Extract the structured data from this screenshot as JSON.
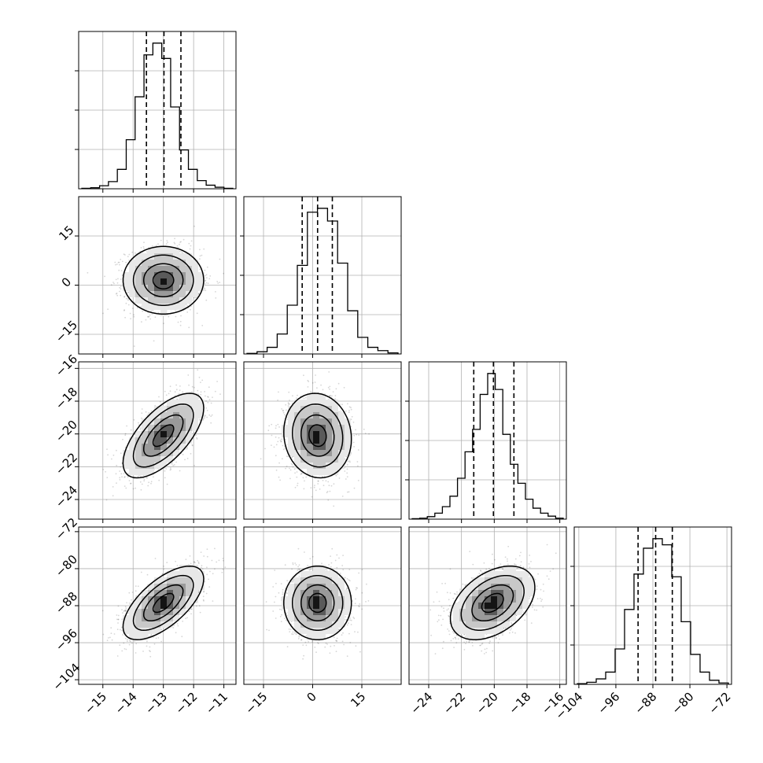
{
  "chart_data": {
    "type": "corner",
    "title": "",
    "grid": true,
    "params": [
      {
        "range": [
          -15.8,
          -10.6
        ],
        "ticks": [
          -15,
          -14,
          -13,
          -12,
          -11
        ],
        "tick_labels": [
          "−15",
          "−14",
          "−13",
          "−12",
          "−11"
        ],
        "quantiles": [
          -13.56,
          -12.98,
          -12.42
        ],
        "mean": -13.0,
        "sd": 0.62,
        "hist_counts": [
          1,
          2,
          6,
          14,
          38,
          96,
          180,
          262,
          285,
          255,
          160,
          76,
          38,
          16,
          7,
          3,
          1
        ]
      },
      {
        "range": [
          -21,
          27
        ],
        "ticks": [
          -15,
          0,
          15
        ],
        "tick_labels": [
          "−15",
          "0",
          "15"
        ],
        "quantiles": [
          -3.2,
          1.5,
          6.0
        ],
        "mean": 1.5,
        "sd": 4.8,
        "hist_counts": [
          1,
          4,
          12,
          36,
          88,
          160,
          256,
          263,
          240,
          164,
          78,
          30,
          12,
          6,
          2
        ]
      },
      {
        "range": [
          -25.2,
          -15.6
        ],
        "ticks": [
          -24,
          -22,
          -20,
          -18,
          -16
        ],
        "tick_labels": [
          "−24",
          "−22",
          "−20",
          "−18",
          "−16"
        ],
        "quantiles": [
          -21.25,
          -20.05,
          -18.8
        ],
        "mean": -20.1,
        "sd": 1.2,
        "hist_counts": [
          1,
          2,
          5,
          12,
          25,
          46,
          82,
          135,
          180,
          250,
          292,
          260,
          170,
          110,
          72,
          40,
          22,
          12,
          6,
          2
        ]
      },
      {
        "range": [
          -105,
          -71
        ],
        "ticks": [
          -104,
          -96,
          -88,
          -80,
          -72
        ],
        "tick_labels": [
          "−104",
          "−96",
          "−88",
          "−80",
          "−72"
        ],
        "quantiles": [
          -91.2,
          -87.4,
          -83.8
        ],
        "mean": -87.4,
        "sd": 3.7,
        "hist_counts": [
          1,
          3,
          8,
          18,
          52,
          110,
          162,
          200,
          214,
          205,
          158,
          92,
          44,
          18,
          6,
          2
        ]
      }
    ],
    "correlations": {
      "1-0": 0.0,
      "2-0": 0.65,
      "2-1": -0.08,
      "3-0": 0.65,
      "3-1": 0.0,
      "3-2": 0.42
    }
  }
}
